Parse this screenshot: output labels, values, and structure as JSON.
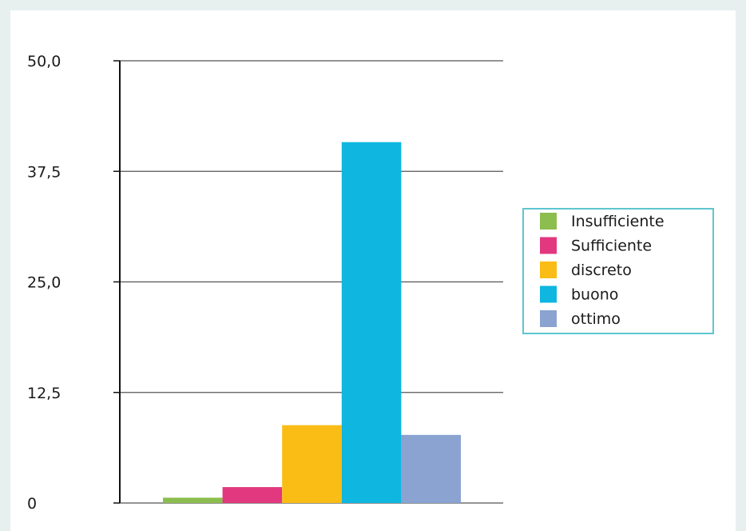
{
  "chart_data": {
    "type": "bar",
    "categories": [
      "Insufficiente",
      "Sufficiente",
      "discreto",
      "buono",
      "ottimo"
    ],
    "values": [
      0.6,
      1.8,
      8.8,
      40.8,
      7.7
    ],
    "colors": [
      "#8cbd4f",
      "#e1387f",
      "#f9bd15",
      "#0eb6e0",
      "#8aa3d0"
    ],
    "ylim": [
      0,
      50
    ],
    "yticks": [
      "0",
      "12,5",
      "25,0",
      "37,5",
      "50,0"
    ],
    "grid": true,
    "legend_position": "right",
    "title": "",
    "xlabel": "",
    "ylabel": ""
  }
}
